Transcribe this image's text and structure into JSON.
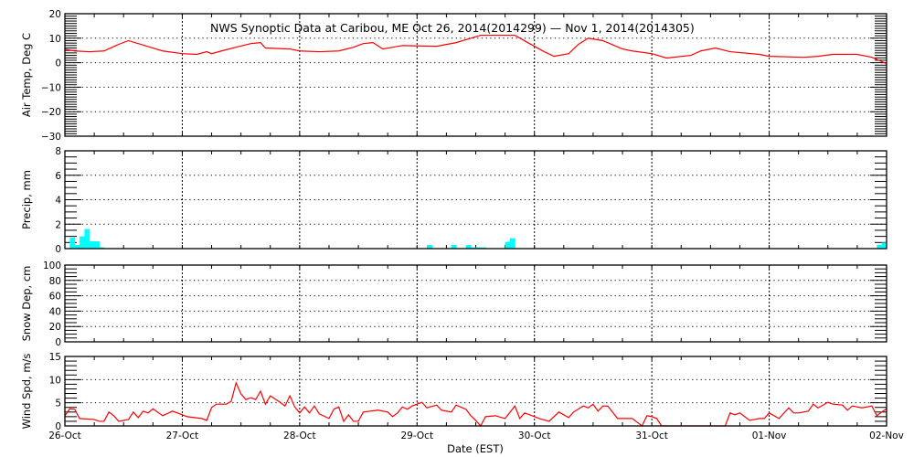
{
  "chart_data": {
    "type": "line",
    "title": "NWS Synoptic Data at Caribou, ME   Oct 26, 2014(2014299) — Nov  1, 2014(2014305)",
    "xlabel": "Date (EST)",
    "x_tick_labels": [
      "26-Oct",
      "27-Oct",
      "28-Oct",
      "29-Oct",
      "30-Oct",
      "31-Oct",
      "01-Nov",
      "02-Nov"
    ],
    "x_unit": "hour of day within each date",
    "grid": true,
    "line_color": "#ff0000",
    "bar_color": "#00ffff",
    "panels": [
      {
        "key": "temp",
        "type": "line",
        "ylabel": "Air Temp, Deg C",
        "ylim": [
          -30,
          20
        ],
        "y_ticks": [
          "20",
          "10",
          "0",
          "−10",
          "−20",
          "−30"
        ],
        "y_tick_values": [
          20,
          10,
          0,
          -10,
          -20,
          -30
        ],
        "minor_step": 1,
        "series": [
          {
            "date": "26-Oct",
            "points": [
              [
                0,
                5.5
              ],
              [
                2,
                4.8
              ],
              [
                5,
                4.5
              ],
              [
                8,
                4.8
              ],
              [
                11,
                7.5
              ],
              [
                13,
                9.0
              ],
              [
                15,
                7.8
              ],
              [
                18,
                6.0
              ],
              [
                20,
                4.8
              ]
            ]
          },
          {
            "date": "27-Oct",
            "points": [
              [
                0,
                3.7
              ],
              [
                3,
                3.4
              ],
              [
                5,
                4.5
              ],
              [
                6,
                3.7
              ],
              [
                8,
                4.8
              ],
              [
                11,
                6.3
              ],
              [
                14,
                7.8
              ],
              [
                16,
                8.2
              ],
              [
                17,
                6.0
              ],
              [
                22,
                5.6
              ]
            ]
          },
          {
            "date": "28-Oct",
            "points": [
              [
                0,
                4.8
              ],
              [
                4,
                4.5
              ],
              [
                8,
                4.8
              ],
              [
                11,
                6.3
              ],
              [
                13,
                7.8
              ],
              [
                15,
                8.2
              ],
              [
                17,
                5.6
              ],
              [
                19,
                6.3
              ],
              [
                21,
                7.0
              ]
            ]
          },
          {
            "date": "29-Oct",
            "points": [
              [
                4,
                6.7
              ],
              [
                8,
                8.2
              ],
              [
                13,
                11.2
              ],
              [
                20,
                11.2
              ],
              [
                23,
                7.8
              ]
            ]
          },
          {
            "date": "30-Oct",
            "points": [
              [
                2,
                4.5
              ],
              [
                4,
                2.6
              ],
              [
                7,
                3.7
              ],
              [
                9,
                7.5
              ],
              [
                11,
                10.0
              ],
              [
                14,
                9.0
              ],
              [
                18,
                5.6
              ],
              [
                20,
                4.8
              ]
            ]
          },
          {
            "date": "31-Oct",
            "points": [
              [
                0,
                3.7
              ],
              [
                3,
                1.9
              ],
              [
                8,
                3.0
              ],
              [
                10,
                4.8
              ],
              [
                13,
                6.0
              ],
              [
                16,
                4.5
              ],
              [
                22,
                3.4
              ]
            ]
          },
          {
            "date": "01-Nov",
            "points": [
              [
                0,
                2.6
              ],
              [
                7,
                2.2
              ],
              [
                10,
                2.6
              ],
              [
                13,
                3.4
              ],
              [
                18,
                3.4
              ],
              [
                21,
                2.2
              ]
            ]
          },
          {
            "date": "02-Nov",
            "points": [
              [
                0,
                -0.4
              ]
            ]
          }
        ]
      },
      {
        "key": "precip",
        "type": "bar",
        "ylabel": "Precip, mm",
        "ylim": [
          0,
          8
        ],
        "y_ticks": [
          "8",
          "6",
          "4",
          "2",
          "0"
        ],
        "y_tick_values": [
          8,
          6,
          4,
          2,
          0
        ],
        "minor_step": 0.5,
        "series": [
          {
            "date": "26-Oct",
            "points": [
              [
                1,
                0.9
              ],
              [
                2,
                0.3
              ],
              [
                3,
                1.0
              ],
              [
                4,
                1.6
              ],
              [
                5,
                0.6
              ],
              [
                6,
                0.6
              ],
              [
                7,
                0.1
              ]
            ]
          },
          {
            "date": "29-Oct",
            "points": [
              [
                2,
                0.3
              ],
              [
                6,
                0.05
              ],
              [
                7,
                0.3
              ],
              [
                10,
                0.3
              ],
              [
                11,
                0.1
              ],
              [
                12,
                0.1
              ],
              [
                13,
                0.1
              ],
              [
                18,
                0.55
              ],
              [
                19,
                0.85
              ]
            ]
          },
          {
            "date": "01-Nov",
            "points": [
              [
                22,
                0.3
              ],
              [
                23,
                0.5
              ]
            ]
          }
        ]
      },
      {
        "key": "snow",
        "type": "line",
        "ylabel": "Snow Dep, cm",
        "ylim": [
          0,
          100
        ],
        "y_ticks": [
          "100",
          "80",
          "60",
          "40",
          "20",
          "0"
        ],
        "y_tick_values": [
          100,
          80,
          60,
          40,
          20,
          0
        ],
        "minor_step": 5,
        "series": []
      },
      {
        "key": "wind",
        "type": "line",
        "ylabel": "Wind Spd, m/s",
        "ylim": [
          0,
          15
        ],
        "y_ticks": [
          "15",
          "10",
          "5",
          "0"
        ],
        "y_tick_values": [
          15,
          10,
          5,
          0
        ],
        "minor_step": 1,
        "series": [
          {
            "date": "26-Oct",
            "points": [
              [
                0,
                2.2
              ],
              [
                1,
                3.7
              ],
              [
                2,
                3.6
              ],
              [
                3,
                1.6
              ],
              [
                6,
                1.4
              ],
              [
                7,
                1.0
              ],
              [
                8,
                1.0
              ],
              [
                9,
                3.0
              ],
              [
                10,
                2.2
              ],
              [
                11,
                1.0
              ],
              [
                13,
                1.4
              ],
              [
                14,
                3.0
              ],
              [
                15,
                1.8
              ],
              [
                16,
                3.2
              ],
              [
                17,
                2.8
              ],
              [
                18,
                3.7
              ],
              [
                20,
                2.2
              ],
              [
                22,
                3.2
              ]
            ]
          },
          {
            "date": "27-Oct",
            "points": [
              [
                1,
                2.0
              ],
              [
                4,
                1.6
              ],
              [
                5,
                1.2
              ],
              [
                6,
                4.0
              ],
              [
                7,
                4.7
              ],
              [
                9,
                4.7
              ],
              [
                10,
                5.3
              ],
              [
                11,
                9.3
              ],
              [
                12,
                6.9
              ],
              [
                13,
                5.7
              ],
              [
                14,
                6.1
              ],
              [
                15,
                5.7
              ],
              [
                16,
                7.5
              ],
              [
                17,
                4.7
              ],
              [
                18,
                6.5
              ],
              [
                20,
                5.1
              ],
              [
                21,
                4.3
              ],
              [
                22,
                6.5
              ],
              [
                23,
                4.1
              ]
            ]
          },
          {
            "date": "28-Oct",
            "points": [
              [
                0,
                2.8
              ],
              [
                1,
                4.1
              ],
              [
                2,
                2.8
              ],
              [
                3,
                4.3
              ],
              [
                4,
                2.6
              ],
              [
                6,
                1.6
              ],
              [
                7,
                3.6
              ],
              [
                8,
                4.1
              ],
              [
                9,
                1.0
              ],
              [
                10,
                2.4
              ],
              [
                11,
                1.0
              ],
              [
                12,
                1.0
              ],
              [
                13,
                3.0
              ],
              [
                16,
                3.4
              ],
              [
                18,
                3.0
              ],
              [
                19,
                2.0
              ],
              [
                20,
                2.8
              ],
              [
                21,
                4.1
              ],
              [
                22,
                3.6
              ],
              [
                23,
                4.3
              ]
            ]
          },
          {
            "date": "29-Oct",
            "points": [
              [
                1,
                5.1
              ],
              [
                2,
                3.9
              ],
              [
                4,
                4.5
              ],
              [
                5,
                3.4
              ],
              [
                7,
                3.0
              ],
              [
                8,
                4.5
              ],
              [
                10,
                3.6
              ],
              [
                11,
                2.2
              ],
              [
                12,
                1.2
              ],
              [
                13,
                0
              ],
              [
                14,
                2.0
              ],
              [
                16,
                2.2
              ],
              [
                18,
                1.6
              ],
              [
                20,
                4.3
              ],
              [
                21,
                1.6
              ],
              [
                22,
                2.8
              ]
            ]
          },
          {
            "date": "30-Oct",
            "points": [
              [
                0,
                2.0
              ],
              [
                1,
                1.6
              ],
              [
                3,
                1.0
              ],
              [
                5,
                3.0
              ],
              [
                7,
                1.8
              ],
              [
                8,
                3.0
              ],
              [
                10,
                4.3
              ],
              [
                11,
                3.9
              ],
              [
                12,
                4.7
              ],
              [
                13,
                3.2
              ],
              [
                14,
                4.3
              ],
              [
                15,
                4.3
              ],
              [
                17,
                1.6
              ],
              [
                20,
                1.6
              ],
              [
                21,
                0.8
              ],
              [
                22,
                0
              ],
              [
                23,
                2.2
              ]
            ]
          },
          {
            "date": "31-Oct",
            "points": [
              [
                0,
                2.0
              ],
              [
                1,
                1.6
              ],
              [
                2,
                0
              ],
              [
                15,
                0
              ],
              [
                16,
                2.8
              ],
              [
                17,
                2.4
              ],
              [
                18,
                2.8
              ],
              [
                19,
                2.0
              ],
              [
                20,
                1.2
              ],
              [
                22,
                1.6
              ],
              [
                23,
                1.6
              ]
            ]
          },
          {
            "date": "01-Nov",
            "points": [
              [
                0,
                2.8
              ],
              [
                2,
                1.6
              ],
              [
                4,
                3.9
              ],
              [
                5,
                2.8
              ],
              [
                6,
                2.8
              ],
              [
                8,
                3.2
              ],
              [
                9,
                4.7
              ],
              [
                10,
                3.9
              ],
              [
                12,
                5.1
              ],
              [
                13,
                4.7
              ],
              [
                15,
                4.5
              ],
              [
                16,
                3.4
              ],
              [
                17,
                4.3
              ],
              [
                19,
                3.9
              ],
              [
                21,
                4.3
              ],
              [
                22,
                2.2
              ],
              [
                23,
                3.0
              ]
            ]
          },
          {
            "date": "02-Nov",
            "points": [
              [
                0,
                3.7
              ]
            ]
          }
        ]
      }
    ]
  }
}
